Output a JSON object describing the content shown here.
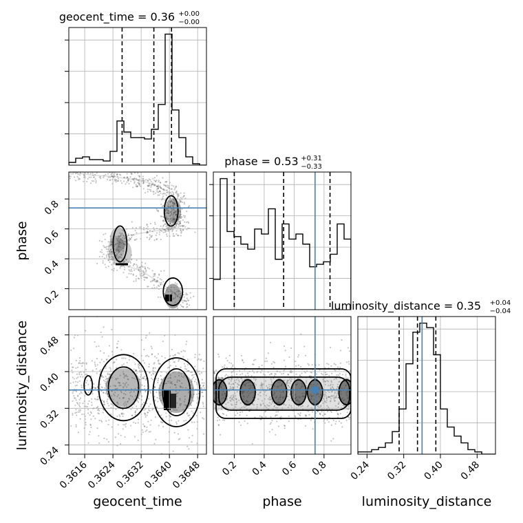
{
  "chart_data": {
    "type": "corner",
    "parameters": [
      "geocent_time",
      "phase",
      "luminosity_distance"
    ],
    "truths": {
      "geocent_time": null,
      "phase": 0.74,
      "luminosity_distance": 0.36
    },
    "colors": {
      "truth": "#4682b4",
      "hist": "#000000",
      "density": "#000000",
      "grid": "#b0b0b0"
    },
    "grid": true,
    "titles": [
      {
        "param": "geocent_time",
        "text": "geocent_time = 0.36",
        "plus": "+0.00",
        "minus": "−0.00"
      },
      {
        "param": "phase",
        "text": "phase = 0.53",
        "plus": "+0.31",
        "minus": "−0.33"
      },
      {
        "param": "luminosity_distance",
        "text": "luminosity_distance = 0.35",
        "plus": "+0.04",
        "minus": "−0.04"
      }
    ],
    "ranges": {
      "geocent_time": [
        0.36115,
        0.36505
      ],
      "phase": [
        0.06,
        0.98
      ],
      "luminosity_distance": [
        0.22,
        0.52
      ]
    },
    "ticks": {
      "geocent_time": {
        "values": [
          0.3616,
          0.3624,
          0.3632,
          0.364,
          0.3648
        ],
        "labels": [
          "0.3616",
          "0.3624",
          "0.3632",
          "0.3640",
          "0.3648"
        ]
      },
      "phase": {
        "values": [
          0.2,
          0.4,
          0.6,
          0.8
        ],
        "labels": [
          "0.2",
          "0.4",
          "0.6",
          "0.8"
        ]
      },
      "luminosity_distance": {
        "values": [
          0.24,
          0.32,
          0.4,
          0.48
        ],
        "labels": [
          "0.24",
          "0.32",
          "0.40",
          "0.48"
        ]
      }
    },
    "quantiles": {
      "geocent_time": [
        0.36266,
        0.36356,
        0.36406
      ],
      "phase": [
        0.2,
        0.53,
        0.84
      ],
      "luminosity_distance": [
        0.31,
        0.35,
        0.39
      ]
    },
    "histograms": {
      "geocent_time": {
        "edges_range": [
          0.36115,
          0.36505
        ],
        "counts": [
          2,
          5,
          6,
          4,
          4,
          3,
          10,
          32,
          24,
          20,
          20,
          19,
          26,
          44,
          95,
          40,
          20,
          6,
          1,
          0
        ]
      },
      "phase": {
        "edges_range": [
          0.06,
          0.98
        ],
        "counts": [
          12,
          52,
          31,
          29,
          26,
          24,
          32,
          30,
          40,
          20,
          34,
          28,
          30,
          26,
          17,
          18,
          19,
          22,
          34,
          28
        ]
      },
      "luminosity_distance": {
        "edges_range": [
          0.22,
          0.52
        ],
        "counts": [
          1,
          1,
          2,
          3,
          5,
          10,
          20,
          40,
          54,
          58,
          56,
          44,
          20,
          12,
          8,
          5,
          2,
          1,
          0,
          0
        ]
      }
    },
    "density_2d": {
      "phase_vs_geocent_time": {
        "path_x": [
          0.3612,
          0.3618,
          0.3624,
          0.363,
          0.3634,
          0.3637,
          0.36405,
          0.36415,
          0.3641,
          0.36405,
          0.3641,
          0.36415,
          0.3642,
          0.364,
          0.3634,
          0.3627,
          0.3625,
          0.3623,
          0.3624,
          0.3627,
          0.3632,
          0.3636,
          0.3641,
          0.3644
        ],
        "path_y": [
          0.98,
          0.96,
          0.95,
          0.93,
          0.91,
          0.88,
          0.84,
          0.78,
          0.74,
          0.71,
          0.68,
          0.65,
          0.62,
          0.6,
          0.58,
          0.55,
          0.5,
          0.45,
          0.4,
          0.36,
          0.32,
          0.26,
          0.18,
          0.12
        ]
      },
      "luminosity_distance_vs_geocent_time": {
        "blobs_x": [
          0.3617,
          0.3627,
          0.3642
        ],
        "blobs_y": [
          0.37,
          0.365,
          0.355
        ]
      },
      "luminosity_distance_vs_phase": {
        "blobs_x": [
          0.1,
          0.29,
          0.5,
          0.63,
          0.74,
          0.95
        ],
        "blobs_y": [
          0.35,
          0.36,
          0.355,
          0.36,
          0.355,
          0.36
        ]
      }
    }
  }
}
